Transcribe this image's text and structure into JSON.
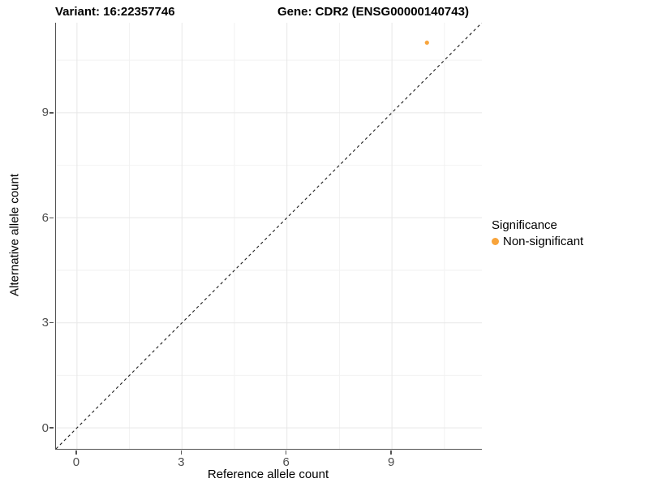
{
  "chart_data": {
    "type": "scatter",
    "title_left": "Variant: 16:22357746",
    "title_right": "Gene: CDR2 (ENSG00000140743)",
    "xlabel": "Reference allele count",
    "ylabel": "Alternative allele count",
    "xlim": [
      -0.6,
      11.57
    ],
    "ylim": [
      -0.6,
      11.57
    ],
    "xticks": [
      0,
      3,
      6,
      9
    ],
    "yticks": [
      0,
      3,
      6,
      9
    ],
    "xticks_minor": [
      1.5,
      4.5,
      7.5,
      10.5
    ],
    "yticks_minor": [
      1.5,
      4.5,
      7.5,
      10.5
    ],
    "grid": true,
    "series": [
      {
        "name": "Non-significant",
        "color": "#F8A43B",
        "points": [
          {
            "x": 10,
            "y": 11
          }
        ]
      }
    ],
    "reference_line": {
      "type": "identity",
      "style": "dashed",
      "color": "#1A1A1A"
    },
    "legend": {
      "position": "right",
      "title": "Significance",
      "items": [
        {
          "label": "Non-significant",
          "color": "#F8A43B",
          "marker": "circle-icon"
        }
      ]
    }
  },
  "style": {
    "axis_color": "#545454",
    "tick_label_color": "#4D4D4D",
    "grid_major_color": "#E7E7E7",
    "grid_minor_color": "#F2F2F2",
    "background": "#FFFFFF"
  }
}
